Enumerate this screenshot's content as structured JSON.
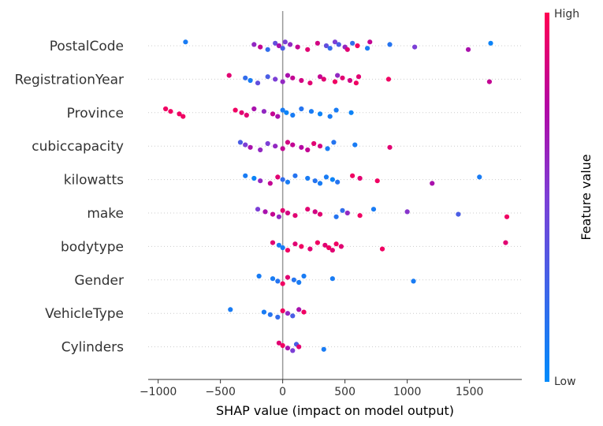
{
  "chart_data": {
    "type": "scatter",
    "subtype": "shap-beeswarm",
    "title": "",
    "xlabel": "SHAP value (impact on model output)",
    "ylabel": "",
    "xlim": [
      -1080,
      1920
    ],
    "xticks": [
      {
        "value": -1000,
        "label": "−1000"
      },
      {
        "value": -500,
        "label": "−500"
      },
      {
        "value": 0,
        "label": "0"
      },
      {
        "value": 500,
        "label": "500"
      },
      {
        "value": 1000,
        "label": "1000"
      },
      {
        "value": 1500,
        "label": "1500"
      }
    ],
    "grid": false,
    "colorbar": {
      "title": "Feature value",
      "high_label": "High",
      "low_label": "Low",
      "low_color": "#008bfb",
      "high_color": "#ff0052"
    },
    "features": [
      {
        "name": "PostalCode",
        "points": [
          [
            -780,
            0.1
          ],
          [
            -230,
            0.6
          ],
          [
            -180,
            0.8
          ],
          [
            -120,
            0.2
          ],
          [
            -60,
            0.4
          ],
          [
            -30,
            0.7
          ],
          [
            0,
            0.3
          ],
          [
            20,
            0.5
          ],
          [
            60,
            0.6
          ],
          [
            120,
            0.8
          ],
          [
            200,
            0.9
          ],
          [
            280,
            0.85
          ],
          [
            350,
            0.4
          ],
          [
            380,
            0.2
          ],
          [
            420,
            0.5
          ],
          [
            450,
            0.3
          ],
          [
            500,
            0.6
          ],
          [
            520,
            0.9
          ],
          [
            560,
            0.2
          ],
          [
            600,
            0.95
          ],
          [
            680,
            0.1
          ],
          [
            700,
            0.8
          ],
          [
            860,
            0.15
          ],
          [
            1060,
            0.5
          ],
          [
            1490,
            0.7
          ],
          [
            1670,
            0.05
          ]
        ]
      },
      {
        "name": "RegistrationYear",
        "points": [
          [
            -430,
            0.9
          ],
          [
            -300,
            0.2
          ],
          [
            -260,
            0.1
          ],
          [
            -200,
            0.4
          ],
          [
            -120,
            0.3
          ],
          [
            -60,
            0.5
          ],
          [
            0,
            0.6
          ],
          [
            40,
            0.7
          ],
          [
            80,
            0.8
          ],
          [
            150,
            0.85
          ],
          [
            220,
            0.9
          ],
          [
            300,
            0.8
          ],
          [
            330,
            0.9
          ],
          [
            420,
            0.95
          ],
          [
            440,
            0.6
          ],
          [
            480,
            0.9
          ],
          [
            540,
            0.85
          ],
          [
            590,
            0.95
          ],
          [
            610,
            0.9
          ],
          [
            850,
            0.95
          ],
          [
            1660,
            0.8
          ]
        ]
      },
      {
        "name": "Province",
        "points": [
          [
            -940,
            0.95
          ],
          [
            -900,
            0.95
          ],
          [
            -830,
            0.95
          ],
          [
            -800,
            0.95
          ],
          [
            -380,
            0.95
          ],
          [
            -330,
            0.9
          ],
          [
            -290,
            0.9
          ],
          [
            -230,
            0.7
          ],
          [
            -150,
            0.6
          ],
          [
            -80,
            0.8
          ],
          [
            -40,
            0.7
          ],
          [
            0,
            0.1
          ],
          [
            30,
            0.05
          ],
          [
            80,
            0.1
          ],
          [
            150,
            0.15
          ],
          [
            230,
            0.1
          ],
          [
            300,
            0.05
          ],
          [
            380,
            0.1
          ],
          [
            430,
            0.1
          ],
          [
            550,
            0.05
          ]
        ]
      },
      {
        "name": "cubiccapacity",
        "points": [
          [
            -340,
            0.3
          ],
          [
            -300,
            0.5
          ],
          [
            -260,
            0.7
          ],
          [
            -180,
            0.6
          ],
          [
            -120,
            0.5
          ],
          [
            -60,
            0.6
          ],
          [
            0,
            0.8
          ],
          [
            40,
            0.85
          ],
          [
            80,
            0.8
          ],
          [
            150,
            0.75
          ],
          [
            200,
            0.8
          ],
          [
            250,
            0.9
          ],
          [
            300,
            0.85
          ],
          [
            360,
            0.1
          ],
          [
            410,
            0.15
          ],
          [
            580,
            0.1
          ],
          [
            860,
            0.9
          ]
        ]
      },
      {
        "name": "kilowatts",
        "points": [
          [
            -300,
            0.1
          ],
          [
            -230,
            0.05
          ],
          [
            -180,
            0.6
          ],
          [
            -100,
            0.8
          ],
          [
            -40,
            0.9
          ],
          [
            0,
            0.2
          ],
          [
            40,
            0.1
          ],
          [
            100,
            0.15
          ],
          [
            200,
            0.1
          ],
          [
            260,
            0.15
          ],
          [
            300,
            0.1
          ],
          [
            350,
            0.1
          ],
          [
            400,
            0.05
          ],
          [
            440,
            0.15
          ],
          [
            560,
            0.95
          ],
          [
            620,
            0.9
          ],
          [
            760,
            0.95
          ],
          [
            1200,
            0.7
          ],
          [
            1580,
            0.1
          ]
        ]
      },
      {
        "name": "make",
        "points": [
          [
            -200,
            0.5
          ],
          [
            -140,
            0.7
          ],
          [
            -80,
            0.8
          ],
          [
            -30,
            0.6
          ],
          [
            0,
            0.9
          ],
          [
            40,
            0.85
          ],
          [
            100,
            0.9
          ],
          [
            200,
            0.9
          ],
          [
            260,
            0.85
          ],
          [
            300,
            0.9
          ],
          [
            430,
            0.15
          ],
          [
            480,
            0.2
          ],
          [
            520,
            0.6
          ],
          [
            620,
            0.95
          ],
          [
            730,
            0.1
          ],
          [
            1000,
            0.55
          ],
          [
            1410,
            0.3
          ],
          [
            1800,
            0.95
          ]
        ]
      },
      {
        "name": "bodytype",
        "points": [
          [
            -80,
            0.9
          ],
          [
            -30,
            0.1
          ],
          [
            0,
            0.1
          ],
          [
            40,
            0.95
          ],
          [
            100,
            0.9
          ],
          [
            150,
            0.95
          ],
          [
            220,
            0.9
          ],
          [
            280,
            0.95
          ],
          [
            340,
            0.9
          ],
          [
            370,
            0.95
          ],
          [
            400,
            0.9
          ],
          [
            430,
            0.95
          ],
          [
            470,
            0.9
          ],
          [
            800,
            0.95
          ],
          [
            1790,
            0.9
          ]
        ]
      },
      {
        "name": "Gender",
        "points": [
          [
            -190,
            0.1
          ],
          [
            -80,
            0.1
          ],
          [
            -40,
            0.15
          ],
          [
            0,
            0.95
          ],
          [
            40,
            0.9
          ],
          [
            90,
            0.15
          ],
          [
            130,
            0.1
          ],
          [
            170,
            0.1
          ],
          [
            400,
            0.1
          ],
          [
            1050,
            0.1
          ]
        ]
      },
      {
        "name": "VehicleType",
        "points": [
          [
            -420,
            0.1
          ],
          [
            -150,
            0.1
          ],
          [
            -100,
            0.15
          ],
          [
            -40,
            0.2
          ],
          [
            0,
            0.95
          ],
          [
            40,
            0.6
          ],
          [
            80,
            0.3
          ],
          [
            130,
            0.7
          ],
          [
            170,
            0.95
          ]
        ]
      },
      {
        "name": "Cylinders",
        "points": [
          [
            -30,
            0.9
          ],
          [
            0,
            0.95
          ],
          [
            40,
            0.7
          ],
          [
            80,
            0.5
          ],
          [
            110,
            0.3
          ],
          [
            130,
            0.9
          ],
          [
            330,
            0.1
          ]
        ]
      }
    ]
  }
}
